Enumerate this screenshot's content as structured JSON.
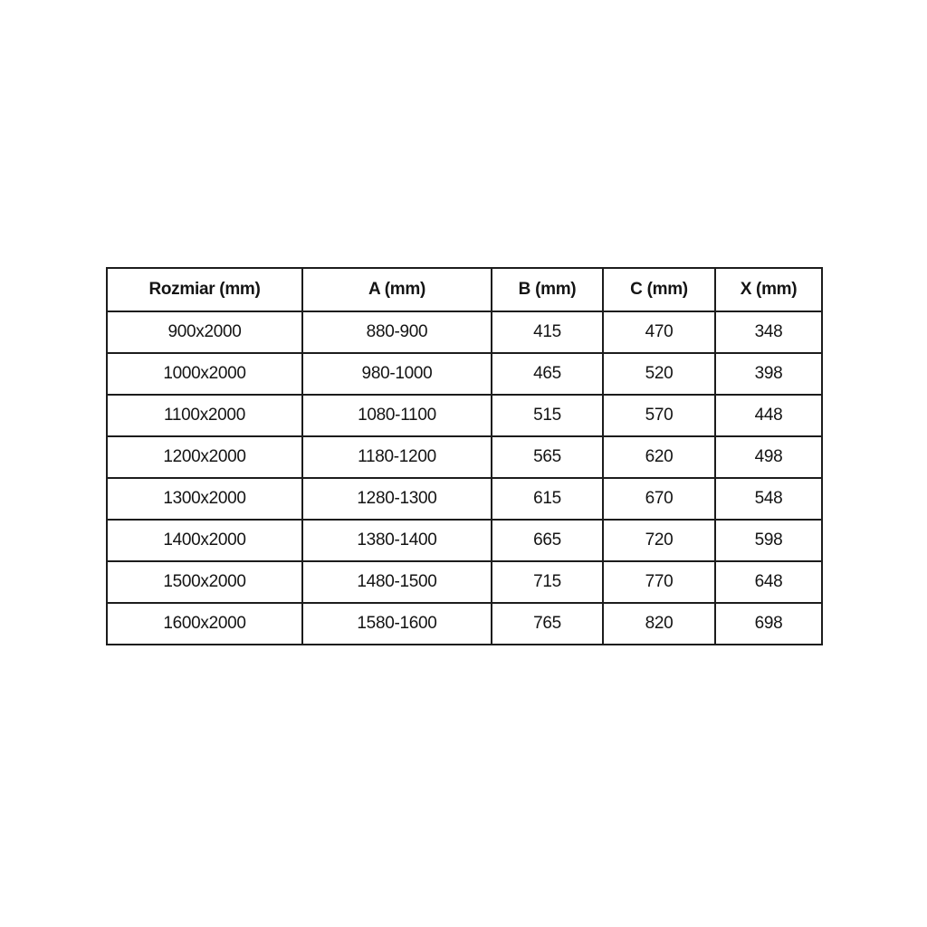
{
  "chart_data": {
    "type": "table",
    "title": "",
    "columns": [
      "Rozmiar (mm)",
      "A (mm)",
      "B (mm)",
      "C (mm)",
      "X (mm)"
    ],
    "rows": [
      [
        "900x2000",
        "880-900",
        "415",
        "470",
        "348"
      ],
      [
        "1000x2000",
        "980-1000",
        "465",
        "520",
        "398"
      ],
      [
        "1100x2000",
        "1080-1100",
        "515",
        "570",
        "448"
      ],
      [
        "1200x2000",
        "1180-1200",
        "565",
        "620",
        "498"
      ],
      [
        "1300x2000",
        "1280-1300",
        "615",
        "670",
        "548"
      ],
      [
        "1400x2000",
        "1380-1400",
        "665",
        "720",
        "598"
      ],
      [
        "1500x2000",
        "1480-1500",
        "715",
        "770",
        "648"
      ],
      [
        "1600x2000",
        "1580-1600",
        "765",
        "820",
        "698"
      ]
    ]
  },
  "style": {
    "border_color": "#1c1c1c",
    "text_color": "#141414",
    "background": "#ffffff"
  }
}
